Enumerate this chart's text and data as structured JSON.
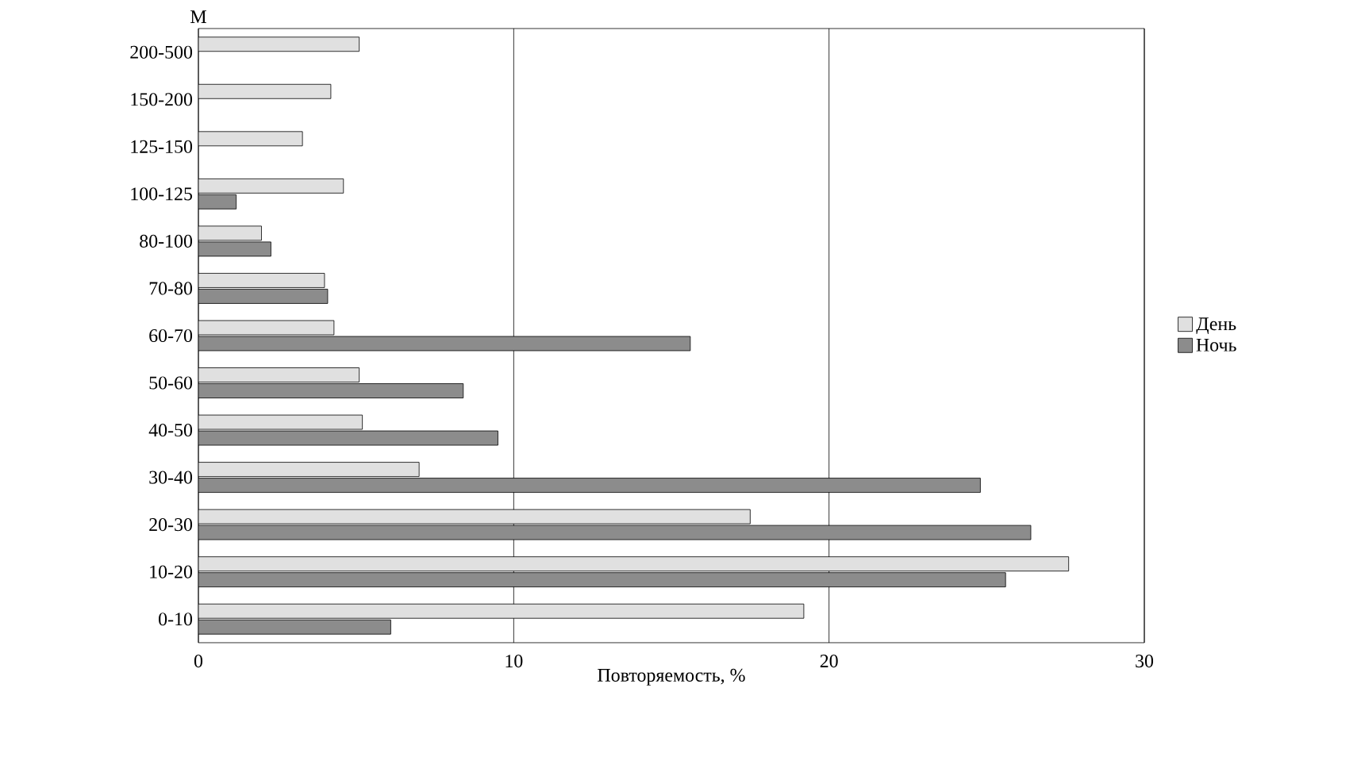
{
  "chart_data": {
    "type": "bar",
    "orientation": "horizontal",
    "ylabel": "М",
    "xlabel": "Повторяемость, %",
    "categories": [
      "200-500",
      "150-200",
      "125-150",
      "100-125",
      "80-100",
      "70-80",
      "60-70",
      "50-60",
      "40-50",
      "30-40",
      "20-30",
      "10-20",
      "0-10"
    ],
    "series": [
      {
        "name": "День",
        "color": "#e0e0e0",
        "values": [
          5.1,
          4.2,
          3.3,
          4.6,
          2.0,
          4.0,
          4.3,
          5.1,
          5.2,
          7.0,
          17.5,
          27.6,
          19.2
        ]
      },
      {
        "name": "Ночь",
        "color": "#8c8c8c",
        "values": [
          null,
          null,
          null,
          1.2,
          2.3,
          4.1,
          15.6,
          8.4,
          9.5,
          24.8,
          26.4,
          25.6,
          6.1
        ]
      }
    ],
    "xlim": [
      0,
      30
    ],
    "xticks": [
      0,
      10,
      20,
      30
    ],
    "grid": "x",
    "legend": "right"
  }
}
